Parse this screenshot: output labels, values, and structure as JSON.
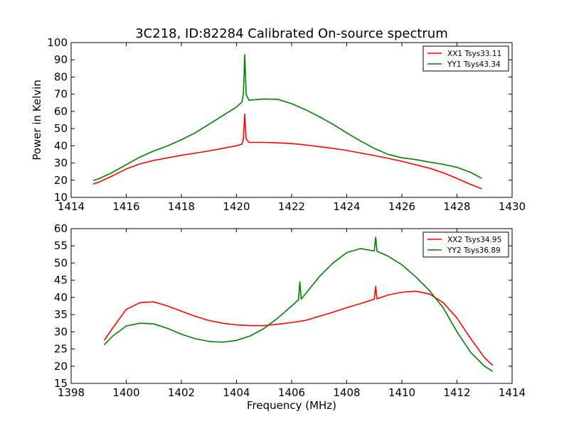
{
  "chart_data": [
    {
      "type": "line",
      "title": "3C218, ID:82284 Calibrated On-source spectrum",
      "xlabel": "",
      "ylabel": "Power in Kelvin",
      "xlim": [
        1414,
        1430
      ],
      "ylim": [
        10,
        100
      ],
      "xticks": [
        "1414",
        "1416",
        "1418",
        "1420",
        "1422",
        "1424",
        "1426",
        "1428",
        "1430"
      ],
      "yticks": [
        "10",
        "20",
        "30",
        "40",
        "50",
        "60",
        "70",
        "80",
        "90",
        "100"
      ],
      "grid": false,
      "legend_position": "top-right",
      "series": [
        {
          "name": "XX1 Tsys33.11",
          "color": "#ff0000",
          "points": [
            [
              1414.8,
              17.8
            ],
            [
              1415,
              18.8
            ],
            [
              1415.5,
              22.5
            ],
            [
              1416,
              26.5
            ],
            [
              1416.5,
              29.5
            ],
            [
              1417,
              31.5
            ],
            [
              1417.5,
              33
            ],
            [
              1418,
              34.5
            ],
            [
              1418.5,
              35.7
            ],
            [
              1419,
              37
            ],
            [
              1419.5,
              38.5
            ],
            [
              1420,
              40
            ],
            [
              1420.2,
              41
            ],
            [
              1420.25,
              44
            ],
            [
              1420.3,
              58.5
            ],
            [
              1420.35,
              44
            ],
            [
              1420.45,
              42
            ],
            [
              1421,
              42
            ],
            [
              1421.5,
              41.7
            ],
            [
              1422,
              41.3
            ],
            [
              1422.5,
              40.5
            ],
            [
              1423,
              39.5
            ],
            [
              1423.5,
              38.5
            ],
            [
              1424,
              37.3
            ],
            [
              1424.5,
              35.8
            ],
            [
              1425,
              34.3
            ],
            [
              1425.5,
              32.7
            ],
            [
              1426,
              31
            ],
            [
              1426.5,
              29
            ],
            [
              1427,
              27
            ],
            [
              1427.5,
              24.3
            ],
            [
              1428,
              21
            ],
            [
              1428.5,
              17.5
            ],
            [
              1428.9,
              15
            ]
          ]
        },
        {
          "name": "YY1 Tsys43.34",
          "color": "#008000",
          "points": [
            [
              1414.8,
              19.8
            ],
            [
              1415,
              20.8
            ],
            [
              1415.5,
              24.5
            ],
            [
              1416,
              29
            ],
            [
              1416.5,
              33.5
            ],
            [
              1417,
              37
            ],
            [
              1417.5,
              40
            ],
            [
              1418,
              43.5
            ],
            [
              1418.5,
              47.5
            ],
            [
              1419,
              52.5
            ],
            [
              1419.5,
              57.5
            ],
            [
              1420,
              62.5
            ],
            [
              1420.2,
              65.5
            ],
            [
              1420.25,
              70
            ],
            [
              1420.3,
              93
            ],
            [
              1420.35,
              70
            ],
            [
              1420.45,
              66.5
            ],
            [
              1421,
              67.2
            ],
            [
              1421.5,
              67
            ],
            [
              1422,
              64.5
            ],
            [
              1422.5,
              61
            ],
            [
              1423,
              57
            ],
            [
              1423.5,
              52.5
            ],
            [
              1424,
              47.5
            ],
            [
              1424.5,
              42.8
            ],
            [
              1425,
              38.5
            ],
            [
              1425.5,
              35
            ],
            [
              1426,
              33
            ],
            [
              1426.5,
              32
            ],
            [
              1427,
              30.5
            ],
            [
              1427.5,
              29.2
            ],
            [
              1428,
              27.5
            ],
            [
              1428.5,
              24.5
            ],
            [
              1428.9,
              21
            ]
          ]
        }
      ]
    },
    {
      "type": "line",
      "title": "",
      "xlabel": "Frequency (MHz)",
      "ylabel": "",
      "xlim": [
        1398,
        1414
      ],
      "ylim": [
        15,
        60
      ],
      "xticks": [
        "1398",
        "1400",
        "1402",
        "1404",
        "1406",
        "1408",
        "1410",
        "1412",
        "1414"
      ],
      "yticks": [
        "15",
        "20",
        "25",
        "30",
        "35",
        "40",
        "45",
        "50",
        "55",
        "60"
      ],
      "grid": false,
      "legend_position": "top-right",
      "series": [
        {
          "name": "XX2 Tsys34.95",
          "color": "#ff0000",
          "points": [
            [
              1399.2,
              27.5
            ],
            [
              1399.5,
              31
            ],
            [
              1400,
              36.5
            ],
            [
              1400.5,
              38.5
            ],
            [
              1401,
              38.7
            ],
            [
              1401.5,
              37.5
            ],
            [
              1402,
              36
            ],
            [
              1402.5,
              34.5
            ],
            [
              1403,
              33.3
            ],
            [
              1403.5,
              32.5
            ],
            [
              1404,
              32
            ],
            [
              1404.5,
              31.8
            ],
            [
              1405,
              31.8
            ],
            [
              1405.5,
              32.2
            ],
            [
              1406,
              32.7
            ],
            [
              1406.5,
              33.3
            ],
            [
              1407,
              34.5
            ],
            [
              1407.5,
              35.7
            ],
            [
              1408,
              37
            ],
            [
              1408.5,
              38.2
            ],
            [
              1409,
              39.5
            ],
            [
              1409.05,
              43.2
            ],
            [
              1409.1,
              39.6
            ],
            [
              1409.5,
              40.7
            ],
            [
              1410,
              41.5
            ],
            [
              1410.5,
              41.8
            ],
            [
              1411,
              41
            ],
            [
              1411.5,
              38.5
            ],
            [
              1412,
              34
            ],
            [
              1412.5,
              28
            ],
            [
              1413,
              22.5
            ],
            [
              1413.3,
              20.2
            ]
          ]
        },
        {
          "name": "YY2 Tsys36.89",
          "color": "#008000",
          "points": [
            [
              1399.2,
              26.2
            ],
            [
              1399.5,
              28.7
            ],
            [
              1400,
              31.7
            ],
            [
              1400.5,
              32.5
            ],
            [
              1401,
              32.3
            ],
            [
              1401.5,
              31
            ],
            [
              1402,
              29.3
            ],
            [
              1402.5,
              28
            ],
            [
              1403,
              27.2
            ],
            [
              1403.5,
              27
            ],
            [
              1404,
              27.5
            ],
            [
              1404.5,
              28.8
            ],
            [
              1405,
              31
            ],
            [
              1405.5,
              34
            ],
            [
              1406,
              37.5
            ],
            [
              1406.25,
              39.3
            ],
            [
              1406.3,
              44.5
            ],
            [
              1406.35,
              39.5
            ],
            [
              1406.5,
              41
            ],
            [
              1407,
              46
            ],
            [
              1407.5,
              50
            ],
            [
              1408,
              53
            ],
            [
              1408.5,
              54.2
            ],
            [
              1409,
              53.5
            ],
            [
              1409.05,
              57.5
            ],
            [
              1409.1,
              53.4
            ],
            [
              1409.5,
              52
            ],
            [
              1410,
              49.5
            ],
            [
              1410.5,
              46
            ],
            [
              1411,
              42
            ],
            [
              1411.5,
              37
            ],
            [
              1412,
              30
            ],
            [
              1412.5,
              24
            ],
            [
              1413,
              20
            ],
            [
              1413.3,
              18.5
            ]
          ]
        }
      ]
    }
  ]
}
